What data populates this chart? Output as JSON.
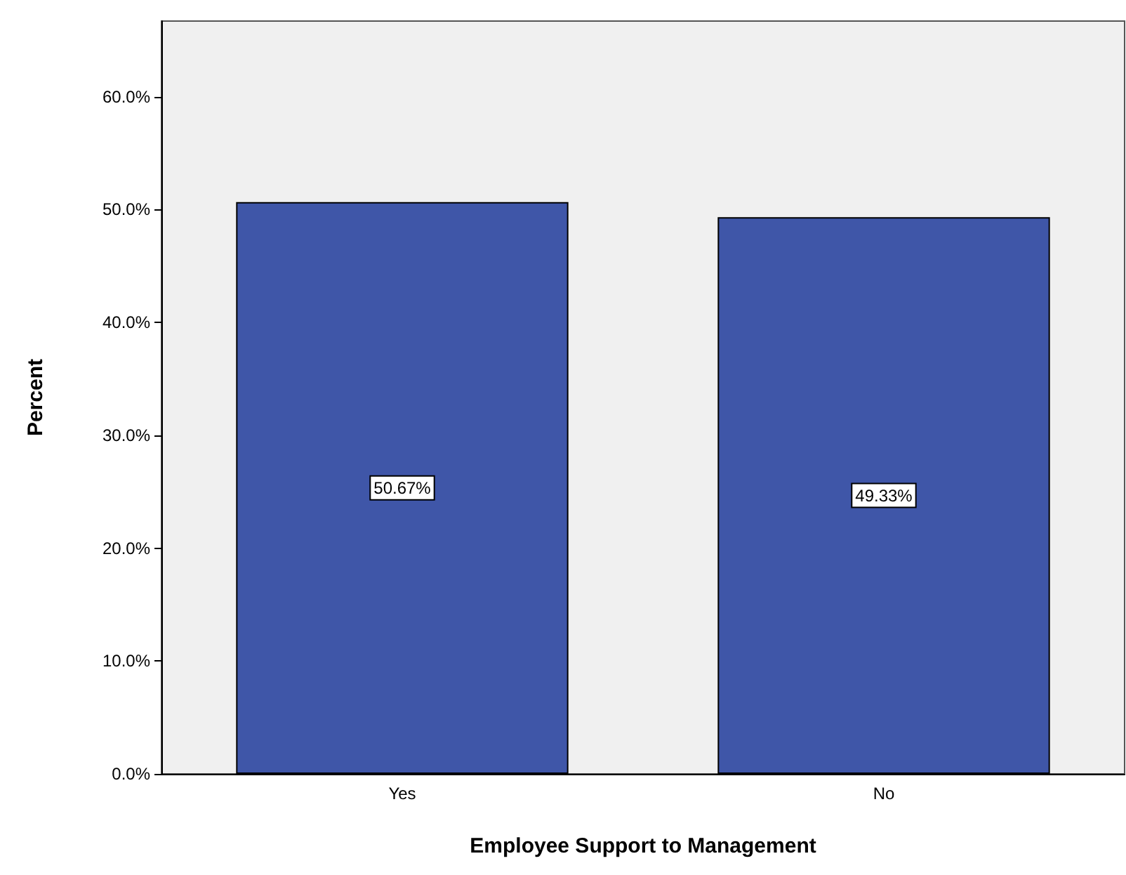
{
  "chart_data": {
    "type": "bar",
    "xlabel": "Employee Support to Management",
    "ylabel": "Percent",
    "categories": [
      "Yes",
      "No"
    ],
    "values": [
      50.67,
      49.33
    ],
    "value_labels": [
      "50.67%",
      "49.33%"
    ],
    "color": "#3f56a8",
    "ylim": [
      0,
      66.7
    ],
    "yticks": [
      {
        "value": 0,
        "label": "0.0%"
      },
      {
        "value": 10,
        "label": "10.0%"
      },
      {
        "value": 20,
        "label": "20.0%"
      },
      {
        "value": 30,
        "label": "30.0%"
      },
      {
        "value": 40,
        "label": "40.0%"
      },
      {
        "value": 50,
        "label": "50.0%"
      },
      {
        "value": 60,
        "label": "60.0%"
      }
    ],
    "grid": false
  }
}
